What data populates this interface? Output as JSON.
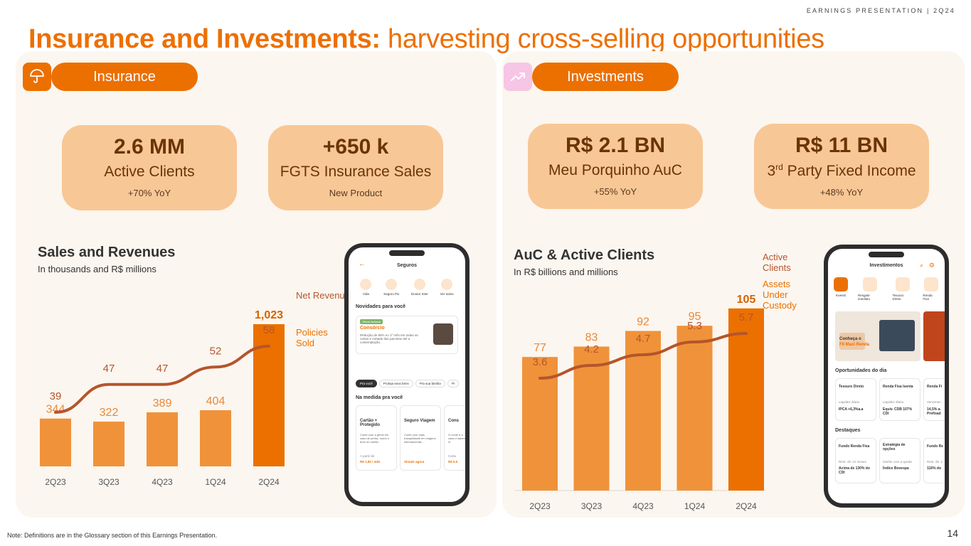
{
  "header": {
    "tag": "EARNINGS PRESENTATION | 2Q24"
  },
  "title": {
    "bold": "Insurance and Investments:",
    "light": " harvesting cross-selling opportunities"
  },
  "insurance": {
    "tab": "Insurance",
    "kpis": [
      {
        "big": "2.6 MM",
        "sub": "Active Clients",
        "note": "+70% YoY"
      },
      {
        "big": "+650 k",
        "sub": "FGTS Insurance Sales",
        "note": "New Product"
      }
    ]
  },
  "investments": {
    "tab": "Investments",
    "kpis": [
      {
        "big": "R$ 2.1 BN",
        "sub": "Meu Porquinho AuC",
        "note": "+55% YoY"
      },
      {
        "big": "R$ 11 BN",
        "sub_sup": "rd",
        "sub_pre": "3",
        "sub_post": " Party Fixed Income",
        "note": "+48% YoY"
      }
    ]
  },
  "chart_data": [
    {
      "type": "bar",
      "title": "Sales and Revenues",
      "subtitle": "In thousands and R$ millions",
      "categories": [
        "2Q23",
        "3Q23",
        "4Q23",
        "1Q24",
        "2Q24"
      ],
      "series": [
        {
          "name": "Policies Sold",
          "values": [
            344,
            322,
            389,
            404,
            1023
          ],
          "labels": [
            "344",
            "322",
            "389",
            "404",
            "1,023"
          ],
          "kind": "bar"
        },
        {
          "name": "Net Revenue",
          "values": [
            39,
            47,
            47,
            52,
            58
          ],
          "kind": "line"
        }
      ],
      "legend": [
        "Net Revenue",
        "Policies Sold"
      ],
      "color_bar": "#f0923a",
      "color_bar_last": "#ec7000",
      "color_line": "#b5552b"
    },
    {
      "type": "bar",
      "title": "AuC & Active Clients",
      "subtitle": "In R$ billions and millions",
      "categories": [
        "2Q23",
        "3Q23",
        "4Q23",
        "1Q24",
        "2Q24"
      ],
      "series": [
        {
          "name": "Assets Under Custody",
          "values": [
            77,
            83,
            92,
            95,
            105
          ],
          "labels": [
            "77",
            "83",
            "92",
            "95",
            "105"
          ],
          "kind": "bar"
        },
        {
          "name": "Active Clients",
          "values": [
            3.6,
            4.2,
            4.7,
            5.3,
            5.7
          ],
          "kind": "line"
        }
      ],
      "legend": [
        "Active Clients",
        "Assets Under Custody"
      ],
      "color_bar": "#f0923a",
      "color_bar_last": "#ec7000",
      "color_line": "#b5552b"
    }
  ],
  "phone_insurance": {
    "title": "Seguros",
    "quick": [
      "Vida",
      "Seguro Pix",
      "Doutor Inter",
      "Ver todos"
    ],
    "news_title": "Novidades para você",
    "promo_badge": "Oferta limitada",
    "promo_head": "Consórcio",
    "promo_text": "Redução de 90% no 1º mês em todas as cartas e metade das parcelas até a contemplação.",
    "chips": [
      "Pra você",
      "Proteja seus bens",
      "Pra sua família",
      "Pr"
    ],
    "section": "Na medida pra você",
    "cards": [
      {
        "head": "Cartão + Protegido",
        "text": "Conte com a gente em caso de perda, roubo e furto do cartão.",
        "foot1": "A partir de",
        "foot2": "R$ 1,90 / mês"
      },
      {
        "head": "Seguro Viagem",
        "text": "Conte com mais tranquilidade em viagens internacionais ...",
        "foot1": "",
        "foot2": "Simule agora"
      },
      {
        "head": "Cons",
        "text": "O conte e a casa d sabem m",
        "foot1": "Carta",
        "foot2": "R$ 5.0"
      }
    ]
  },
  "phone_invest": {
    "title": "Investimentos",
    "quick": [
      "Investir",
      "Resgate imediato",
      "Tesouro Direto",
      "Renda Fixa"
    ],
    "banner_head": "Conheça o",
    "banner_sub": "FII Maxi Renda",
    "section1": "Oportunidades do dia",
    "opps": [
      {
        "head": "Tesouro Direto",
        "sub": "Liquidez diária",
        "val": "IPCA +6,3%a.a"
      },
      {
        "head": "Renda Fixa Isenta",
        "sub": "Liquidez diária",
        "val": "Equiv. CDB 107% CDI"
      },
      {
        "head": "Renda Fi",
        "sub": "Vencimen",
        "val": "14,5% a. Prefixad"
      }
    ],
    "section2": "Destaques",
    "highlights": [
      {
        "head": "Fundo Renda Fixa",
        "sub": "Rent. últ. 12 meses",
        "val": "Acima de 130% do CDI"
      },
      {
        "head": "Estratégia de opções",
        "sub": "Ganhe com a queda",
        "val": "Índice Bovespa"
      },
      {
        "head": "Fundo Re",
        "sub": "Rent. últ. 1",
        "val": "116% do"
      }
    ]
  },
  "footnote": "Note: Definitions are in the Glossary section of this Earnings Presentation.",
  "page_number": "14"
}
